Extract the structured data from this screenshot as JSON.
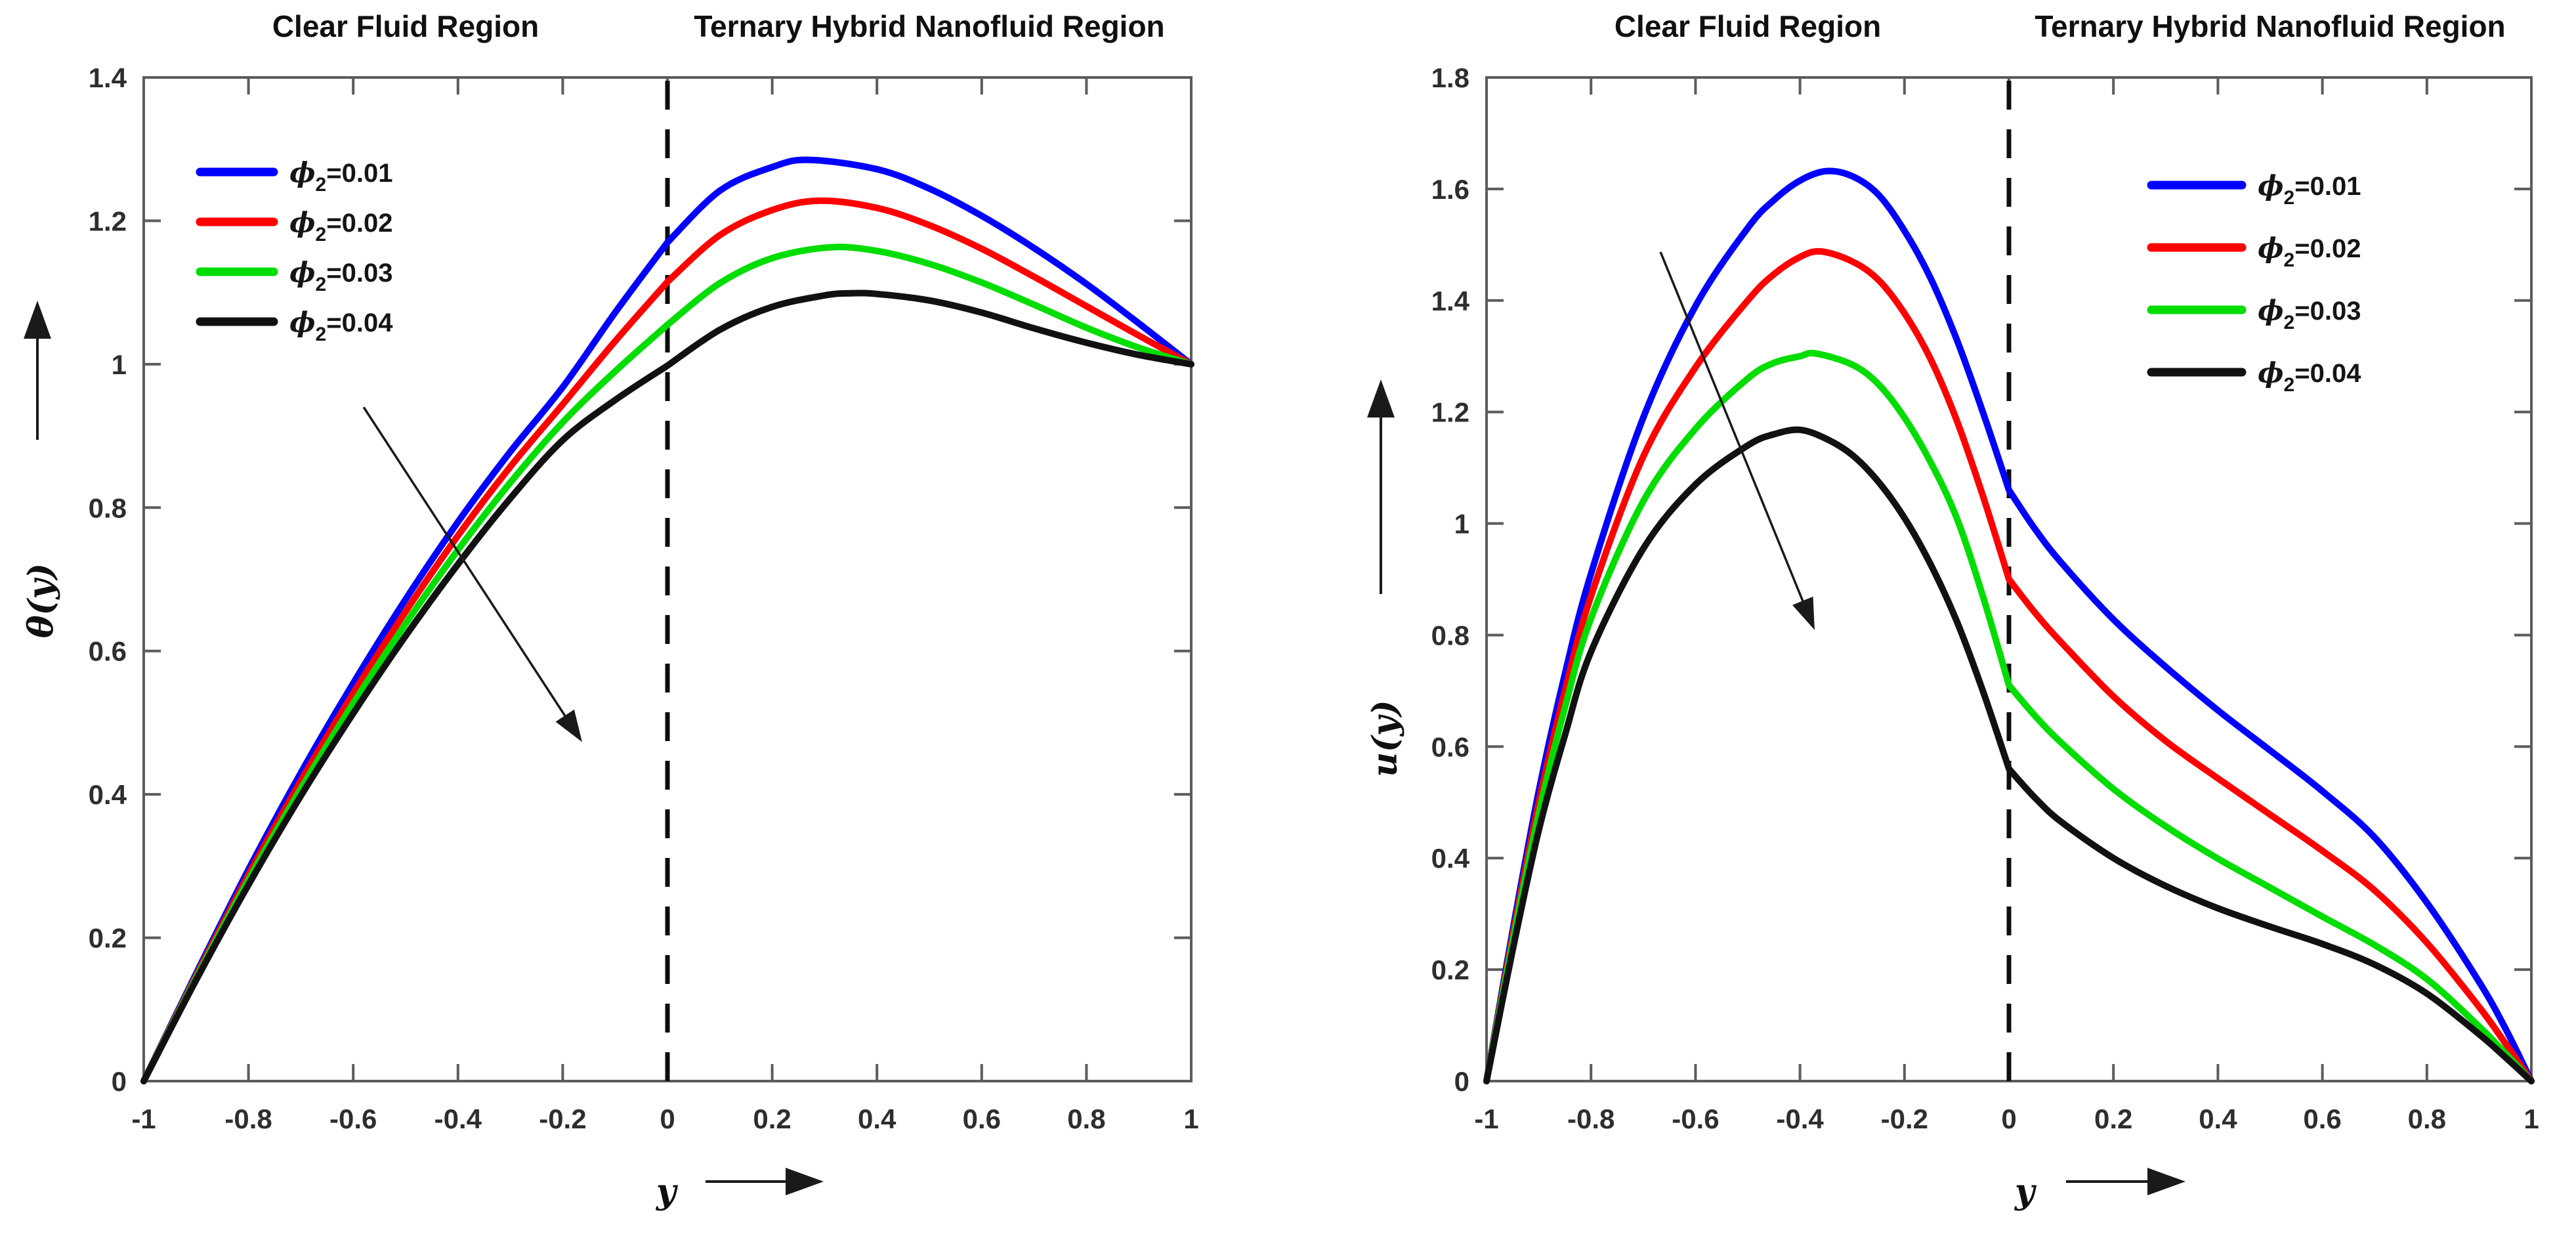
{
  "figure": {
    "background": "#ffffff",
    "accent_colors": [
      "#0000ff",
      "#ff0000",
      "#00dd00",
      "#111111"
    ],
    "interface_line_style": "dashed-black"
  },
  "chart_data": [
    {
      "type": "line",
      "panel": "temperature-profile",
      "titles": {
        "clear": "Clear Fluid Region",
        "nano": "Ternary Hybrid Nanofluid Region"
      },
      "xlabel": "y",
      "ylabel": "θ(y)",
      "xlim": [
        -1,
        1
      ],
      "ylim": [
        0,
        1.4
      ],
      "xtick_values": [
        -1,
        -0.8,
        -0.6,
        -0.4,
        -0.2,
        0,
        0.2,
        0.4,
        0.6,
        0.8,
        1
      ],
      "xtick_labels": [
        "-1",
        "-0.8",
        "-0.6",
        "-0.4",
        "-0.2",
        "0",
        "0.2",
        "0.4",
        "0.6",
        "0.8",
        "1"
      ],
      "ytick_values": [
        0,
        0.2,
        0.4,
        0.6,
        0.8,
        1,
        1.2,
        1.4
      ],
      "ytick_labels": [
        "0",
        "0.2",
        "0.4",
        "0.6",
        "0.8",
        "1",
        "1.2",
        "1.4"
      ],
      "interface_x": 0,
      "grid": false,
      "legend": {
        "location": "upper-left",
        "items": [
          {
            "symbol": "ϕ",
            "subscript": "2",
            "value": "=0.01",
            "color": "#0000ff"
          },
          {
            "symbol": "ϕ",
            "subscript": "2",
            "value": "=0.02",
            "color": "#ff0000"
          },
          {
            "symbol": "ϕ",
            "subscript": "2",
            "value": "=0.03",
            "color": "#00dd00"
          },
          {
            "symbol": "ϕ",
            "subscript": "2",
            "value": "=0.04",
            "color": "#111111"
          }
        ]
      },
      "decrease_arrow": {
        "from": [
          -0.58,
          0.94
        ],
        "to": [
          -0.163,
          0.473
        ]
      },
      "series": [
        {
          "name": "phi2=0.01",
          "color": "#0000ff",
          "points": [
            [
              -1,
              0
            ],
            [
              -0.9,
              0.15
            ],
            [
              -0.8,
              0.295
            ],
            [
              -0.7,
              0.43
            ],
            [
              -0.6,
              0.555
            ],
            [
              -0.5,
              0.672
            ],
            [
              -0.4,
              0.78
            ],
            [
              -0.3,
              0.878
            ],
            [
              -0.2,
              0.968
            ],
            [
              -0.1,
              1.072
            ],
            [
              0,
              1.17
            ],
            [
              0.1,
              1.242
            ],
            [
              0.2,
              1.275
            ],
            [
              0.27,
              1.285
            ],
            [
              0.4,
              1.272
            ],
            [
              0.5,
              1.245
            ],
            [
              0.6,
              1.207
            ],
            [
              0.7,
              1.162
            ],
            [
              0.8,
              1.112
            ],
            [
              0.9,
              1.057
            ],
            [
              1,
              1
            ]
          ]
        },
        {
          "name": "phi2=0.02",
          "color": "#ff0000",
          "points": [
            [
              -1,
              0
            ],
            [
              -0.9,
              0.147
            ],
            [
              -0.8,
              0.288
            ],
            [
              -0.7,
              0.419
            ],
            [
              -0.6,
              0.541
            ],
            [
              -0.5,
              0.655
            ],
            [
              -0.4,
              0.761
            ],
            [
              -0.3,
              0.857
            ],
            [
              -0.2,
              0.944
            ],
            [
              -0.1,
              1.032
            ],
            [
              0,
              1.115
            ],
            [
              0.1,
              1.18
            ],
            [
              0.2,
              1.215
            ],
            [
              0.29,
              1.228
            ],
            [
              0.4,
              1.218
            ],
            [
              0.5,
              1.194
            ],
            [
              0.6,
              1.161
            ],
            [
              0.7,
              1.122
            ],
            [
              0.8,
              1.081
            ],
            [
              0.9,
              1.04
            ],
            [
              1,
              1
            ]
          ]
        },
        {
          "name": "phi2=0.03",
          "color": "#00dd00",
          "points": [
            [
              -1,
              0
            ],
            [
              -0.9,
              0.144
            ],
            [
              -0.8,
              0.281
            ],
            [
              -0.7,
              0.408
            ],
            [
              -0.6,
              0.527
            ],
            [
              -0.5,
              0.638
            ],
            [
              -0.4,
              0.741
            ],
            [
              -0.3,
              0.835
            ],
            [
              -0.2,
              0.919
            ],
            [
              -0.1,
              0.99
            ],
            [
              0,
              1.055
            ],
            [
              0.1,
              1.113
            ],
            [
              0.2,
              1.148
            ],
            [
              0.31,
              1.163
            ],
            [
              0.4,
              1.158
            ],
            [
              0.5,
              1.14
            ],
            [
              0.6,
              1.114
            ],
            [
              0.7,
              1.083
            ],
            [
              0.8,
              1.051
            ],
            [
              0.9,
              1.023
            ],
            [
              1,
              1
            ]
          ]
        },
        {
          "name": "phi2=0.04",
          "color": "#111111",
          "points": [
            [
              -1,
              0
            ],
            [
              -0.9,
              0.141
            ],
            [
              -0.8,
              0.274
            ],
            [
              -0.7,
              0.398
            ],
            [
              -0.6,
              0.513
            ],
            [
              -0.5,
              0.621
            ],
            [
              -0.4,
              0.721
            ],
            [
              -0.3,
              0.813
            ],
            [
              -0.2,
              0.894
            ],
            [
              -0.1,
              0.95
            ],
            [
              0,
              0.998
            ],
            [
              0.1,
              1.048
            ],
            [
              0.2,
              1.08
            ],
            [
              0.3,
              1.096
            ],
            [
              0.35,
              1.099
            ],
            [
              0.4,
              1.098
            ],
            [
              0.5,
              1.089
            ],
            [
              0.6,
              1.072
            ],
            [
              0.7,
              1.05
            ],
            [
              0.8,
              1.03
            ],
            [
              0.9,
              1.013
            ],
            [
              1,
              1
            ]
          ]
        }
      ]
    },
    {
      "type": "line",
      "panel": "velocity-profile",
      "titles": {
        "clear": "Clear Fluid Region",
        "nano": "Ternary Hybrid Nanofluid Region"
      },
      "xlabel": "y",
      "ylabel": "u(y)",
      "xlim": [
        -1,
        1
      ],
      "ylim": [
        0,
        1.8
      ],
      "xtick_values": [
        -1,
        -0.8,
        -0.6,
        -0.4,
        -0.2,
        0,
        0.2,
        0.4,
        0.6,
        0.8,
        1
      ],
      "xtick_labels": [
        "-1",
        "-0.8",
        "-0.6",
        "-0.4",
        "-0.2",
        "0",
        "0.2",
        "0.4",
        "0.6",
        "0.8",
        "1"
      ],
      "ytick_values": [
        0,
        0.2,
        0.4,
        0.6,
        0.8,
        1,
        1.2,
        1.4,
        1.6,
        1.8
      ],
      "ytick_labels": [
        "0",
        "0.2",
        "0.4",
        "0.6",
        "0.8",
        "1",
        "1.2",
        "1.4",
        "1.6",
        "1.8"
      ],
      "interface_x": 0,
      "grid": false,
      "legend": {
        "location": "upper-right",
        "items": [
          {
            "symbol": "ϕ",
            "subscript": "2",
            "value": "=0.01",
            "color": "#0000ff"
          },
          {
            "symbol": "ϕ",
            "subscript": "2",
            "value": "=0.02",
            "color": "#ff0000"
          },
          {
            "symbol": "ϕ",
            "subscript": "2",
            "value": "=0.03",
            "color": "#00dd00"
          },
          {
            "symbol": "ϕ",
            "subscript": "2",
            "value": "=0.04",
            "color": "#111111"
          }
        ]
      },
      "decrease_arrow": {
        "from": [
          -0.667,
          1.487
        ],
        "to": [
          -0.372,
          0.809
        ]
      },
      "series": [
        {
          "name": "phi2=0.01",
          "color": "#0000ff",
          "points": [
            [
              -1,
              0
            ],
            [
              -0.95,
              0.27
            ],
            [
              -0.9,
              0.52
            ],
            [
              -0.85,
              0.73
            ],
            [
              -0.8,
              0.91
            ],
            [
              -0.7,
              1.19
            ],
            [
              -0.6,
              1.39
            ],
            [
              -0.5,
              1.53
            ],
            [
              -0.45,
              1.58
            ],
            [
              -0.4,
              1.615
            ],
            [
              -0.35,
              1.632
            ],
            [
              -0.3,
              1.623
            ],
            [
              -0.25,
              1.59
            ],
            [
              -0.2,
              1.525
            ],
            [
              -0.15,
              1.44
            ],
            [
              -0.1,
              1.33
            ],
            [
              -0.05,
              1.2
            ],
            [
              0,
              1.06
            ],
            [
              0.05,
              0.99
            ],
            [
              0.1,
              0.93
            ],
            [
              0.2,
              0.828
            ],
            [
              0.3,
              0.743
            ],
            [
              0.4,
              0.665
            ],
            [
              0.5,
              0.593
            ],
            [
              0.6,
              0.52
            ],
            [
              0.7,
              0.437
            ],
            [
              0.8,
              0.32
            ],
            [
              0.9,
              0.178
            ],
            [
              0.95,
              0.095
            ],
            [
              1,
              0
            ]
          ]
        },
        {
          "name": "phi2=0.02",
          "color": "#ff0000",
          "points": [
            [
              -1,
              0
            ],
            [
              -0.95,
              0.26
            ],
            [
              -0.9,
              0.5
            ],
            [
              -0.85,
              0.7
            ],
            [
              -0.8,
              0.87
            ],
            [
              -0.7,
              1.12
            ],
            [
              -0.6,
              1.28
            ],
            [
              -0.5,
              1.4
            ],
            [
              -0.45,
              1.447
            ],
            [
              -0.4,
              1.478
            ],
            [
              -0.36,
              1.488
            ],
            [
              -0.3,
              1.47
            ],
            [
              -0.25,
              1.437
            ],
            [
              -0.2,
              1.377
            ],
            [
              -0.15,
              1.295
            ],
            [
              -0.1,
              1.185
            ],
            [
              -0.05,
              1.05
            ],
            [
              0,
              0.9
            ],
            [
              0.05,
              0.84
            ],
            [
              0.1,
              0.787
            ],
            [
              0.2,
              0.69
            ],
            [
              0.3,
              0.61
            ],
            [
              0.4,
              0.543
            ],
            [
              0.5,
              0.478
            ],
            [
              0.6,
              0.413
            ],
            [
              0.7,
              0.342
            ],
            [
              0.8,
              0.248
            ],
            [
              0.9,
              0.133
            ],
            [
              0.95,
              0.068
            ],
            [
              1,
              0
            ]
          ]
        },
        {
          "name": "phi2=0.03",
          "color": "#00dd00",
          "points": [
            [
              -1,
              0
            ],
            [
              -0.95,
              0.25
            ],
            [
              -0.9,
              0.48
            ],
            [
              -0.85,
              0.67
            ],
            [
              -0.8,
              0.83
            ],
            [
              -0.7,
              1.04
            ],
            [
              -0.6,
              1.17
            ],
            [
              -0.5,
              1.26
            ],
            [
              -0.45,
              1.288
            ],
            [
              -0.4,
              1.3
            ],
            [
              -0.37,
              1.305
            ],
            [
              -0.3,
              1.285
            ],
            [
              -0.25,
              1.25
            ],
            [
              -0.2,
              1.19
            ],
            [
              -0.15,
              1.11
            ],
            [
              -0.1,
              1.01
            ],
            [
              -0.05,
              0.87
            ],
            [
              0,
              0.71
            ],
            [
              0.05,
              0.655
            ],
            [
              0.1,
              0.607
            ],
            [
              0.2,
              0.524
            ],
            [
              0.3,
              0.457
            ],
            [
              0.4,
              0.399
            ],
            [
              0.5,
              0.347
            ],
            [
              0.6,
              0.295
            ],
            [
              0.7,
              0.244
            ],
            [
              0.8,
              0.183
            ],
            [
              0.9,
              0.098
            ],
            [
              0.95,
              0.05
            ],
            [
              1,
              0
            ]
          ]
        },
        {
          "name": "phi2=0.04",
          "color": "#111111",
          "points": [
            [
              -1,
              0
            ],
            [
              -0.95,
              0.235
            ],
            [
              -0.9,
              0.45
            ],
            [
              -0.85,
              0.62
            ],
            [
              -0.8,
              0.77
            ],
            [
              -0.7,
              0.955
            ],
            [
              -0.6,
              1.07
            ],
            [
              -0.5,
              1.14
            ],
            [
              -0.45,
              1.16
            ],
            [
              -0.4,
              1.168
            ],
            [
              -0.35,
              1.152
            ],
            [
              -0.3,
              1.123
            ],
            [
              -0.25,
              1.075
            ],
            [
              -0.2,
              1.01
            ],
            [
              -0.15,
              0.927
            ],
            [
              -0.1,
              0.825
            ],
            [
              -0.05,
              0.7
            ],
            [
              0,
              0.56
            ],
            [
              0.05,
              0.508
            ],
            [
              0.1,
              0.465
            ],
            [
              0.2,
              0.4
            ],
            [
              0.3,
              0.35
            ],
            [
              0.4,
              0.31
            ],
            [
              0.5,
              0.277
            ],
            [
              0.6,
              0.246
            ],
            [
              0.7,
              0.209
            ],
            [
              0.8,
              0.157
            ],
            [
              0.9,
              0.084
            ],
            [
              0.95,
              0.043
            ],
            [
              1,
              0
            ]
          ]
        }
      ]
    }
  ]
}
